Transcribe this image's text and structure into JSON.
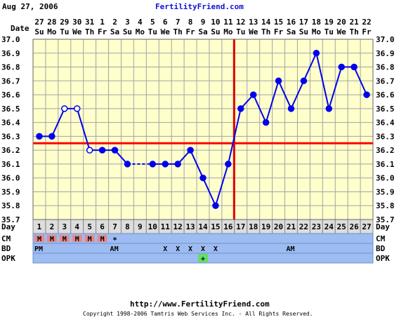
{
  "header": {
    "date": "Aug 27, 2006",
    "site": "FertilityFriend.com"
  },
  "footer": {
    "url": "http://www.FertilityFriend.com",
    "copyright": "Copyright 1998-2006 Tamtris Web Services Inc. - All Rights Reserved."
  },
  "chart_data": {
    "type": "line",
    "row_label_date": "Date",
    "row_label_day": "Day",
    "dates": [
      "27",
      "28",
      "29",
      "30",
      "31",
      "1",
      "2",
      "3",
      "4",
      "5",
      "6",
      "7",
      "8",
      "9",
      "10",
      "11",
      "12",
      "13",
      "14",
      "15",
      "16",
      "17",
      "18",
      "19",
      "20",
      "21",
      "22"
    ],
    "weekdays": [
      "Su",
      "Mo",
      "Tu",
      "We",
      "Th",
      "Fr",
      "Sa",
      "Su",
      "Mo",
      "Tu",
      "We",
      "Th",
      "Fr",
      "Sa",
      "Su",
      "Mo",
      "Tu",
      "We",
      "Th",
      "Fr",
      "Sa",
      "Su",
      "Mo",
      "Tu",
      "We",
      "Th",
      "Fr"
    ],
    "days": [
      "1",
      "2",
      "3",
      "4",
      "5",
      "6",
      "7",
      "8",
      "9",
      "10",
      "11",
      "12",
      "13",
      "14",
      "15",
      "16",
      "17",
      "18",
      "19",
      "20",
      "21",
      "22",
      "23",
      "24",
      "25",
      "26",
      "27"
    ],
    "ylim": [
      35.7,
      37.0
    ],
    "y_ticks": [
      "37.0",
      "36.9",
      "36.8",
      "36.7",
      "36.6",
      "36.5",
      "36.4",
      "36.3",
      "36.2",
      "36.1",
      "36.0",
      "35.9",
      "35.8",
      "35.7"
    ],
    "series": [
      {
        "values": [
          36.3,
          36.3,
          36.5,
          36.5,
          36.2,
          36.2,
          36.2,
          36.1,
          null,
          36.1,
          36.1,
          36.1,
          36.2,
          36.0,
          35.8,
          36.1,
          36.5,
          36.6,
          36.4,
          36.7,
          36.5,
          36.7,
          36.9,
          36.5,
          36.8,
          36.8,
          36.6
        ],
        "open_points": [
          3,
          4,
          5
        ],
        "dashed_segment": [
          8,
          10
        ]
      }
    ],
    "coverline": 36.25,
    "ovulation_day": 16,
    "grid": true,
    "bottom_rows": {
      "cm": {
        "label": "CM",
        "marks": [
          "M",
          "M",
          "M",
          "M",
          "M",
          "M",
          "",
          "",
          "",
          "",
          "",
          "",
          "",
          "",
          "",
          "",
          "",
          "",
          "",
          "",
          "",
          "",
          "",
          "",
          "",
          "",
          ""
        ],
        "highlight": [
          1,
          2,
          3,
          4,
          5,
          6
        ]
      },
      "bd": {
        "label": "BD",
        "marks": [
          "PM",
          "",
          "",
          "",
          "",
          "",
          "AM",
          "",
          "",
          "",
          "X",
          "X",
          "X",
          "X",
          "X",
          "",
          "",
          "",
          "",
          "",
          "AM",
          "",
          "",
          "",
          "",
          "",
          ""
        ]
      },
      "opk": {
        "label": "OPK",
        "marks": [
          "",
          "",
          "",
          "",
          "",
          "",
          "",
          "",
          "",
          "",
          "",
          "",
          "",
          "+",
          "",
          "",
          "",
          "",
          "",
          "",
          "",
          "",
          "",
          "",
          "",
          "",
          ""
        ],
        "positive_day": 14
      }
    },
    "star_day": 7,
    "star_mark": "*"
  },
  "colors": {
    "plot_bg": "#ffffcc",
    "grid": "#a3a3a3",
    "line": "#0000ee",
    "coverline": "#ff0000",
    "ovulation": "#dd0000",
    "row_bg": "#9cbcf2",
    "cm_fill": "#e88888",
    "opk_fill": "#66dd66",
    "day_row_bg": "#dddddd",
    "site": "#1212d8"
  }
}
